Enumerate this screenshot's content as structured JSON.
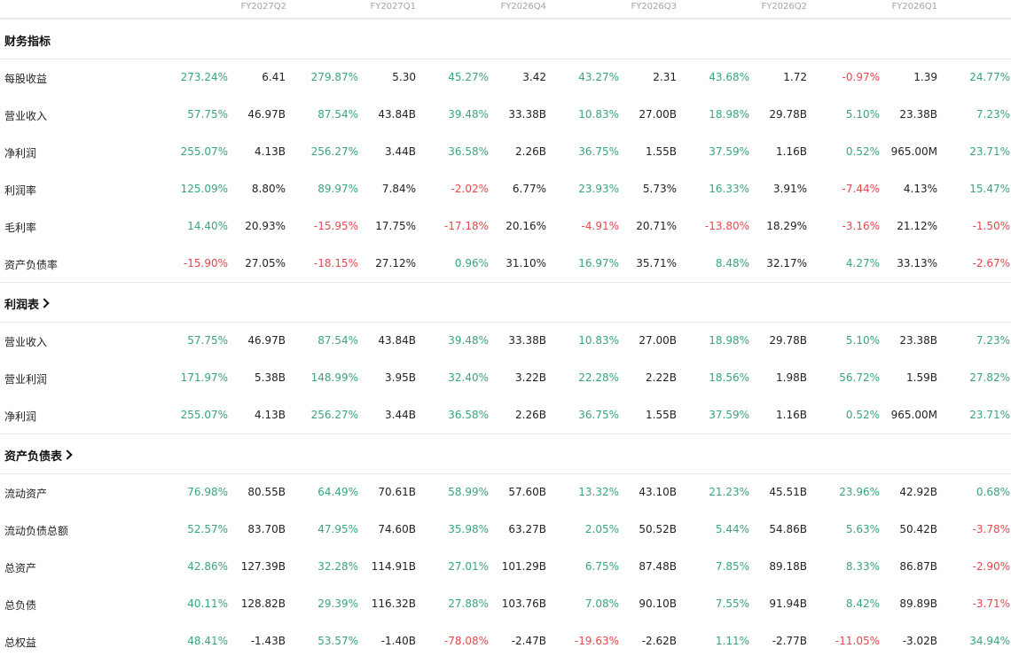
{
  "colors": {
    "positive": "#3aa57a",
    "negative": "#e5484d"
  },
  "periods": [
    "FY2027Q2",
    "FY2027Q1",
    "FY2026Q4",
    "FY2026Q3",
    "FY2026Q2",
    "FY2026Q1"
  ],
  "sections": [
    {
      "title": "财务指标",
      "expandable": false,
      "rows": [
        {
          "label": "每股收益",
          "cells": [
            [
              "273.24%",
              "6.41"
            ],
            [
              "279.87%",
              "5.30"
            ],
            [
              "45.27%",
              "3.42"
            ],
            [
              "43.27%",
              "2.31"
            ],
            [
              "43.68%",
              "1.72"
            ],
            [
              "-0.97%",
              "1.39"
            ],
            [
              "24.77%"
            ]
          ]
        },
        {
          "label": "营业收入",
          "cells": [
            [
              "57.75%",
              "46.97B"
            ],
            [
              "87.54%",
              "43.84B"
            ],
            [
              "39.48%",
              "33.38B"
            ],
            [
              "10.83%",
              "27.00B"
            ],
            [
              "18.98%",
              "29.78B"
            ],
            [
              "5.10%",
              "23.38B"
            ],
            [
              "7.23%"
            ]
          ]
        },
        {
          "label": "净利润",
          "cells": [
            [
              "255.07%",
              "4.13B"
            ],
            [
              "256.27%",
              "3.44B"
            ],
            [
              "36.58%",
              "2.26B"
            ],
            [
              "36.75%",
              "1.55B"
            ],
            [
              "37.59%",
              "1.16B"
            ],
            [
              "0.52%",
              "965.00M"
            ],
            [
              "23.71%"
            ]
          ]
        },
        {
          "label": "利润率",
          "cells": [
            [
              "125.09%",
              "8.80%"
            ],
            [
              "89.97%",
              "7.84%"
            ],
            [
              "-2.02%",
              "6.77%"
            ],
            [
              "23.93%",
              "5.73%"
            ],
            [
              "16.33%",
              "3.91%"
            ],
            [
              "-7.44%",
              "4.13%"
            ],
            [
              "15.47%"
            ]
          ]
        },
        {
          "label": "毛利率",
          "cells": [
            [
              "14.40%",
              "20.93%"
            ],
            [
              "-15.95%",
              "17.75%"
            ],
            [
              "-17.18%",
              "20.16%"
            ],
            [
              "-4.91%",
              "20.71%"
            ],
            [
              "-13.80%",
              "18.29%"
            ],
            [
              "-3.16%",
              "21.12%"
            ],
            [
              "-1.50%"
            ]
          ]
        },
        {
          "label": "资产负债率",
          "cells": [
            [
              "-15.90%",
              "27.05%"
            ],
            [
              "-18.15%",
              "27.12%"
            ],
            [
              "0.96%",
              "31.10%"
            ],
            [
              "16.97%",
              "35.71%"
            ],
            [
              "8.48%",
              "32.17%"
            ],
            [
              "4.27%",
              "33.13%"
            ],
            [
              "-2.67%"
            ]
          ]
        }
      ]
    },
    {
      "title": "利润表",
      "expandable": true,
      "rows": [
        {
          "label": "营业收入",
          "cells": [
            [
              "57.75%",
              "46.97B"
            ],
            [
              "87.54%",
              "43.84B"
            ],
            [
              "39.48%",
              "33.38B"
            ],
            [
              "10.83%",
              "27.00B"
            ],
            [
              "18.98%",
              "29.78B"
            ],
            [
              "5.10%",
              "23.38B"
            ],
            [
              "7.23%"
            ]
          ]
        },
        {
          "label": "营业利润",
          "cells": [
            [
              "171.97%",
              "5.38B"
            ],
            [
              "148.99%",
              "3.95B"
            ],
            [
              "32.40%",
              "3.22B"
            ],
            [
              "22.28%",
              "2.22B"
            ],
            [
              "18.56%",
              "1.98B"
            ],
            [
              "56.72%",
              "1.59B"
            ],
            [
              "27.82%"
            ]
          ]
        },
        {
          "label": "净利润",
          "cells": [
            [
              "255.07%",
              "4.13B"
            ],
            [
              "256.27%",
              "3.44B"
            ],
            [
              "36.58%",
              "2.26B"
            ],
            [
              "36.75%",
              "1.55B"
            ],
            [
              "37.59%",
              "1.16B"
            ],
            [
              "0.52%",
              "965.00M"
            ],
            [
              "23.71%"
            ]
          ]
        }
      ]
    },
    {
      "title": "资产负债表",
      "expandable": true,
      "rows": [
        {
          "label": "流动资产",
          "cells": [
            [
              "76.98%",
              "80.55B"
            ],
            [
              "64.49%",
              "70.61B"
            ],
            [
              "58.99%",
              "57.60B"
            ],
            [
              "13.32%",
              "43.10B"
            ],
            [
              "21.23%",
              "45.51B"
            ],
            [
              "23.96%",
              "42.92B"
            ],
            [
              "0.68%"
            ]
          ]
        },
        {
          "label": "流动负债总额",
          "cells": [
            [
              "52.57%",
              "83.70B"
            ],
            [
              "47.95%",
              "74.60B"
            ],
            [
              "35.98%",
              "63.27B"
            ],
            [
              "2.05%",
              "50.52B"
            ],
            [
              "5.44%",
              "54.86B"
            ],
            [
              "5.63%",
              "50.42B"
            ],
            [
              "-3.78%"
            ]
          ]
        },
        {
          "label": "总资产",
          "cells": [
            [
              "42.86%",
              "127.39B"
            ],
            [
              "32.28%",
              "114.91B"
            ],
            [
              "27.01%",
              "101.29B"
            ],
            [
              "6.75%",
              "87.48B"
            ],
            [
              "7.85%",
              "89.18B"
            ],
            [
              "8.33%",
              "86.87B"
            ],
            [
              "-2.90%"
            ]
          ]
        },
        {
          "label": "总负债",
          "cells": [
            [
              "40.11%",
              "128.82B"
            ],
            [
              "29.39%",
              "116.32B"
            ],
            [
              "27.88%",
              "103.76B"
            ],
            [
              "7.08%",
              "90.10B"
            ],
            [
              "7.55%",
              "91.94B"
            ],
            [
              "8.42%",
              "89.89B"
            ],
            [
              "-3.71%"
            ]
          ]
        },
        {
          "label": "总权益",
          "cells": [
            [
              "48.41%",
              "-1.43B"
            ],
            [
              "53.57%",
              "-1.40B"
            ],
            [
              "-78.08%",
              "-2.47B"
            ],
            [
              "-19.63%",
              "-2.62B"
            ],
            [
              "1.11%",
              "-2.77B"
            ],
            [
              "-11.05%",
              "-3.02B"
            ],
            [
              "34.94%"
            ]
          ]
        }
      ]
    }
  ]
}
